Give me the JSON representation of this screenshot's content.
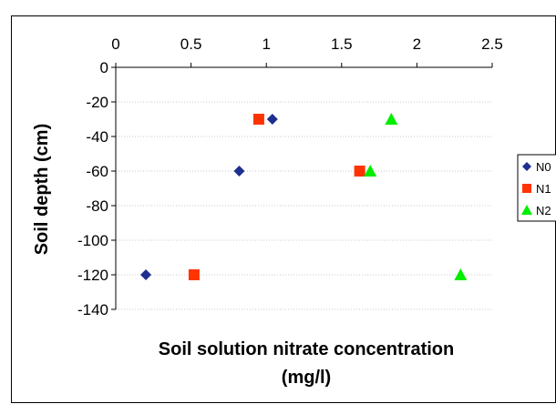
{
  "chart_data": {
    "type": "scatter",
    "title": "",
    "xlabel_line1": "Soil solution nitrate concentration",
    "xlabel_line2": "(mg/l)",
    "ylabel": "Soil depth (cm)",
    "xlim": [
      0,
      2.5
    ],
    "ylim": [
      -140,
      0
    ],
    "x_ticks": [
      "0",
      "0.5",
      "1",
      "1.5",
      "2",
      "2.5"
    ],
    "y_ticks": [
      "0",
      "-20",
      "-40",
      "-60",
      "-80",
      "-100",
      "-120",
      "-140"
    ],
    "x_axis_position": "top",
    "grid": "horizontal dotted",
    "legend_position": "right",
    "series": [
      {
        "name": "N0",
        "marker": "diamond",
        "color": "#1f2f8f",
        "points": [
          [
            1.04,
            -30
          ],
          [
            0.82,
            -60
          ],
          [
            0.2,
            -120
          ]
        ]
      },
      {
        "name": "N1",
        "marker": "square",
        "color": "#ff3300",
        "points": [
          [
            0.95,
            -30
          ],
          [
            1.62,
            -60
          ],
          [
            0.52,
            -120
          ]
        ]
      },
      {
        "name": "N2",
        "marker": "triangle",
        "color": "#00ee00",
        "points": [
          [
            1.83,
            -30
          ],
          [
            1.69,
            -60
          ],
          [
            2.29,
            -120
          ]
        ]
      }
    ]
  }
}
